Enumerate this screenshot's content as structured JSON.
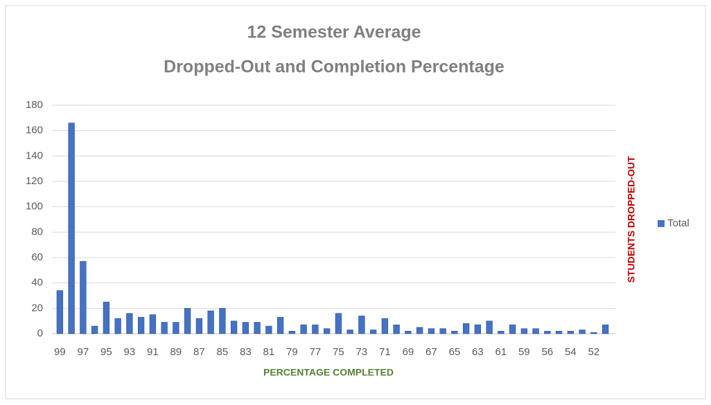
{
  "chart_data": {
    "type": "bar",
    "title": [
      "12 Semester Average",
      "Dropped-Out and Completion Percentage"
    ],
    "x_label": "PERCENTAGE COMPLETED",
    "y_label": "STUDENTS DROPPED-OUT",
    "categories": [
      "99",
      null,
      "97",
      null,
      "95",
      null,
      "93",
      null,
      "91",
      null,
      "89",
      null,
      "87",
      null,
      "85",
      null,
      "83",
      null,
      "81",
      null,
      "79",
      null,
      "77",
      null,
      "75",
      null,
      "73",
      null,
      "71",
      null,
      "69",
      null,
      "67",
      null,
      "65",
      null,
      "63",
      null,
      "61",
      null,
      "59",
      null,
      "56",
      null,
      "54",
      null,
      "52",
      null
    ],
    "series": [
      {
        "name": "Total",
        "color": "#4472c4",
        "values": [
          34,
          166,
          57,
          6,
          25,
          12,
          16,
          13,
          15,
          9,
          9,
          20,
          12,
          18,
          20,
          10,
          9,
          9,
          6,
          13,
          2,
          7,
          7,
          4,
          16,
          3,
          14,
          3,
          12,
          7,
          2,
          5,
          4,
          4,
          2,
          8,
          7,
          10,
          2,
          7,
          4,
          4,
          2,
          2,
          2,
          3,
          1,
          7
        ]
      }
    ],
    "ylim": [
      0,
      180
    ],
    "yticks": [
      0,
      20,
      40,
      60,
      80,
      100,
      120,
      140,
      160,
      180
    ],
    "grid": true,
    "legend": "right"
  }
}
